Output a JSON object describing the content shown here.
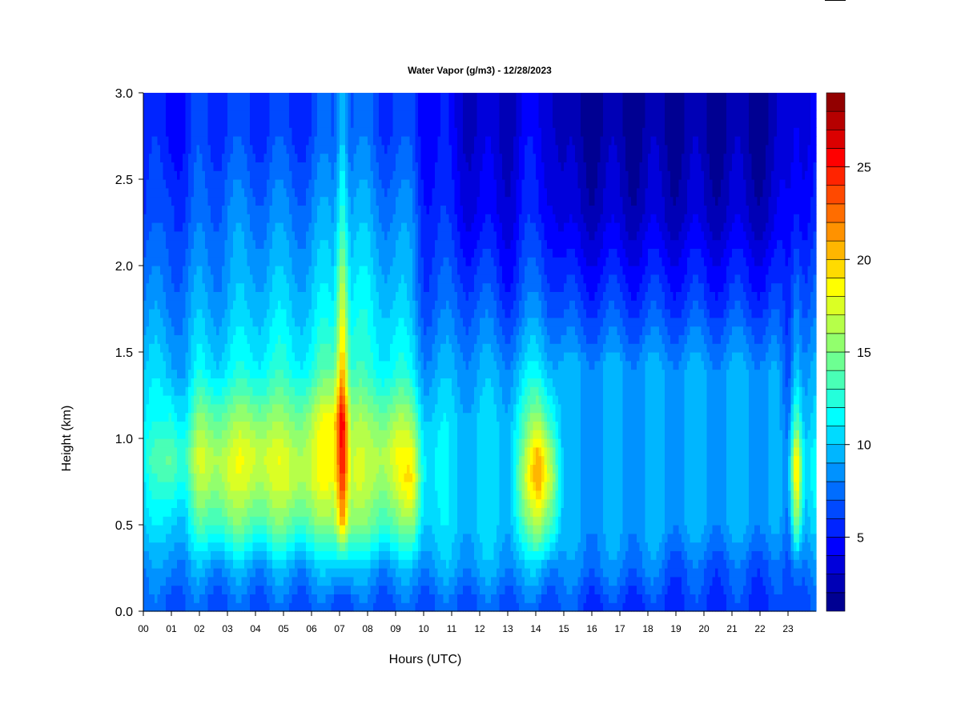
{
  "chart_data": {
    "type": "heatmap",
    "title": "Water Vapor (g/m3) - 12/28/2023",
    "xlabel": "Hours (UTC)",
    "ylabel": "Height (km)",
    "xlim": [
      0,
      24
    ],
    "ylim": [
      0.0,
      3.0
    ],
    "x_ticks": [
      "00",
      "01",
      "02",
      "03",
      "04",
      "05",
      "06",
      "07",
      "08",
      "09",
      "10",
      "11",
      "12",
      "13",
      "14",
      "15",
      "16",
      "17",
      "18",
      "19",
      "20",
      "21",
      "22",
      "23"
    ],
    "y_ticks": [
      "0.0",
      "0.5",
      "1.0",
      "1.5",
      "2.0",
      "2.5",
      "3.0"
    ],
    "colorbar": {
      "min": 1,
      "max": 29,
      "levels": 28,
      "tick_labels": [
        "5",
        "10",
        "15",
        "20",
        "25"
      ],
      "tick_values": [
        5,
        10,
        15,
        20,
        25
      ],
      "colormap": "jet"
    },
    "grid": false,
    "height_km": [
      0.05,
      0.25,
      0.5,
      0.75,
      0.9,
      1.1,
      1.4,
      1.8,
      2.3,
      2.8
    ],
    "profiles": [
      {
        "hour": 0.0,
        "values": [
          7,
          8,
          10,
          11,
          12,
          11,
          10,
          8,
          6,
          5
        ]
      },
      {
        "hour": 0.5,
        "values": [
          7,
          8,
          10,
          12,
          13,
          11,
          10,
          8,
          6,
          5
        ]
      },
      {
        "hour": 1.0,
        "values": [
          7,
          9,
          11,
          14,
          15,
          13,
          10,
          8,
          7,
          5
        ]
      },
      {
        "hour": 1.5,
        "values": [
          7,
          8,
          10,
          12,
          13,
          11,
          9,
          8,
          6,
          5
        ]
      },
      {
        "hour": 2.0,
        "values": [
          7,
          9,
          13,
          16,
          17,
          15,
          11,
          9,
          7,
          6
        ]
      },
      {
        "hour": 3.0,
        "values": [
          7,
          9,
          14,
          17,
          17,
          15,
          11,
          9,
          8,
          6
        ]
      },
      {
        "hour": 4.0,
        "values": [
          7,
          9,
          14,
          17,
          18,
          16,
          12,
          10,
          8,
          6
        ]
      },
      {
        "hour": 5.0,
        "values": [
          7,
          9,
          14,
          17,
          17,
          15,
          12,
          10,
          8,
          6
        ]
      },
      {
        "hour": 6.0,
        "values": [
          7,
          9,
          14,
          17,
          17,
          16,
          12,
          10,
          8,
          6
        ]
      },
      {
        "hour": 6.8,
        "values": [
          7,
          10,
          15,
          18,
          19,
          19,
          14,
          11,
          9,
          7
        ]
      },
      {
        "hour": 7.1,
        "values": [
          7,
          11,
          22,
          26,
          27,
          28,
          22,
          19,
          14,
          11
        ]
      },
      {
        "hour": 7.4,
        "values": [
          7,
          10,
          15,
          17,
          17,
          16,
          13,
          11,
          9,
          7
        ]
      },
      {
        "hour": 8.0,
        "values": [
          7,
          9,
          14,
          16,
          16,
          15,
          12,
          11,
          9,
          7
        ]
      },
      {
        "hour": 9.0,
        "values": [
          7,
          9,
          14,
          17,
          18,
          16,
          12,
          10,
          8,
          6
        ]
      },
      {
        "hour": 9.6,
        "values": [
          7,
          9,
          15,
          19,
          18,
          15,
          11,
          9,
          8,
          6
        ]
      },
      {
        "hour": 10.0,
        "values": [
          7,
          9,
          11,
          12,
          12,
          11,
          9,
          7,
          6,
          5
        ]
      },
      {
        "hour": 11.0,
        "values": [
          7,
          9,
          10,
          10,
          10,
          10,
          9,
          7,
          5,
          4
        ]
      },
      {
        "hour": 12.0,
        "values": [
          7,
          9,
          10,
          10,
          10,
          10,
          9,
          7,
          4,
          3
        ]
      },
      {
        "hour": 13.0,
        "values": [
          7,
          9,
          10,
          10,
          10,
          10,
          9,
          6,
          4,
          3
        ]
      },
      {
        "hour": 13.6,
        "values": [
          7,
          9,
          13,
          16,
          15,
          13,
          10,
          7,
          5,
          4
        ]
      },
      {
        "hour": 14.1,
        "values": [
          7,
          10,
          16,
          21,
          21,
          16,
          11,
          8,
          5,
          4
        ]
      },
      {
        "hour": 14.6,
        "values": [
          7,
          9,
          14,
          17,
          16,
          13,
          10,
          7,
          5,
          4
        ]
      },
      {
        "hour": 15.0,
        "values": [
          7,
          8,
          9,
          9,
          9,
          9,
          9,
          6,
          3,
          2
        ]
      },
      {
        "hour": 16.0,
        "values": [
          6,
          8,
          9,
          9,
          9,
          9,
          9,
          6,
          3,
          2
        ]
      },
      {
        "hour": 18.0,
        "values": [
          6,
          8,
          9,
          9,
          9,
          9,
          9,
          6,
          3,
          2
        ]
      },
      {
        "hour": 19.0,
        "values": [
          6,
          7,
          9,
          9,
          9,
          9,
          9,
          6,
          3,
          2
        ]
      },
      {
        "hour": 21.0,
        "values": [
          6,
          7,
          9,
          9,
          9,
          9,
          9,
          6,
          3,
          2
        ]
      },
      {
        "hour": 22.5,
        "values": [
          6,
          7,
          9,
          9,
          9,
          9,
          9,
          6,
          3,
          2
        ]
      },
      {
        "hour": 23.0,
        "values": [
          6,
          6,
          7,
          8,
          8,
          7,
          6,
          5,
          4,
          3
        ]
      },
      {
        "hour": 23.3,
        "values": [
          7,
          9,
          16,
          21,
          21,
          15,
          11,
          9,
          6,
          5
        ]
      },
      {
        "hour": 23.6,
        "values": [
          7,
          8,
          10,
          11,
          11,
          10,
          9,
          7,
          5,
          4
        ]
      },
      {
        "hour": 24.0,
        "values": [
          7,
          8,
          10,
          11,
          11,
          10,
          9,
          7,
          5,
          4
        ]
      }
    ]
  }
}
